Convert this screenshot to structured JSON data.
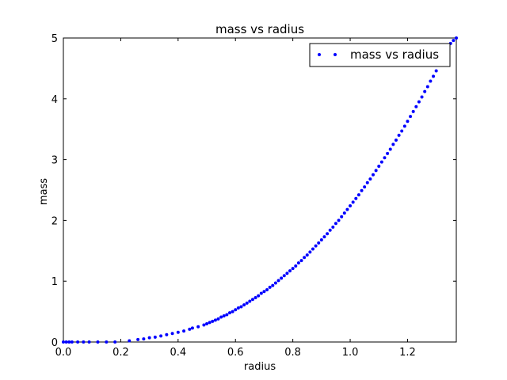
{
  "chart_data": {
    "type": "scatter",
    "title": "mass vs radius",
    "xlabel": "radius",
    "ylabel": "mass",
    "xlim": [
      0.0,
      1.37
    ],
    "ylim": [
      0,
      5
    ],
    "xticks": [
      "0.0",
      "0.2",
      "0.4",
      "0.6",
      "0.8",
      "1.0",
      "1.2"
    ],
    "yticks": [
      "0",
      "1",
      "2",
      "3",
      "4",
      "5"
    ],
    "grid": false,
    "legend": {
      "position": "top-right",
      "entries": [
        "mass vs radius"
      ]
    },
    "series": [
      {
        "name": "mass vs radius",
        "color": "#0000ff",
        "marker": "dot",
        "x": [
          0.0,
          0.01,
          0.02,
          0.03,
          0.05,
          0.07,
          0.09,
          0.12,
          0.15,
          0.18,
          0.23,
          0.26,
          0.28,
          0.3,
          0.32,
          0.34,
          0.36,
          0.38,
          0.4,
          0.42,
          0.44,
          0.45,
          0.47,
          0.49,
          0.5,
          0.51,
          0.52,
          0.53,
          0.54,
          0.55,
          0.56,
          0.57,
          0.58,
          0.59,
          0.6,
          0.61,
          0.62,
          0.63,
          0.64,
          0.65,
          0.66,
          0.67,
          0.68,
          0.69,
          0.7,
          0.71,
          0.72,
          0.73,
          0.74,
          0.75,
          0.76,
          0.77,
          0.78,
          0.79,
          0.8,
          0.81,
          0.82,
          0.83,
          0.84,
          0.85,
          0.86,
          0.87,
          0.88,
          0.89,
          0.9,
          0.91,
          0.92,
          0.93,
          0.94,
          0.95,
          0.96,
          0.97,
          0.98,
          0.99,
          1.0,
          1.01,
          1.02,
          1.03,
          1.04,
          1.05,
          1.06,
          1.07,
          1.08,
          1.09,
          1.1,
          1.11,
          1.12,
          1.13,
          1.14,
          1.15,
          1.16,
          1.17,
          1.18,
          1.19,
          1.2,
          1.21,
          1.22,
          1.23,
          1.24,
          1.25,
          1.26,
          1.27,
          1.28,
          1.29,
          1.3,
          1.31,
          1.32,
          1.33,
          1.34,
          1.35,
          1.36,
          1.37
        ],
        "y": [
          0.0,
          0.0,
          0.0,
          0.0,
          0.0,
          0.0,
          0.0,
          0.0,
          0.0,
          0.0,
          0.02,
          0.04,
          0.05,
          0.07,
          0.08,
          0.1,
          0.12,
          0.14,
          0.16,
          0.18,
          0.21,
          0.23,
          0.25,
          0.28,
          0.3,
          0.32,
          0.34,
          0.36,
          0.38,
          0.41,
          0.43,
          0.45,
          0.48,
          0.5,
          0.53,
          0.56,
          0.58,
          0.61,
          0.64,
          0.67,
          0.7,
          0.73,
          0.76,
          0.8,
          0.83,
          0.86,
          0.9,
          0.93,
          0.97,
          1.01,
          1.05,
          1.09,
          1.13,
          1.17,
          1.21,
          1.25,
          1.3,
          1.34,
          1.39,
          1.43,
          1.48,
          1.53,
          1.58,
          1.63,
          1.68,
          1.73,
          1.78,
          1.84,
          1.89,
          1.95,
          2.0,
          2.06,
          2.12,
          2.18,
          2.24,
          2.3,
          2.36,
          2.42,
          2.49,
          2.55,
          2.62,
          2.68,
          2.75,
          2.82,
          2.89,
          2.96,
          3.03,
          3.1,
          3.17,
          3.25,
          3.32,
          3.4,
          3.47,
          3.55,
          3.63,
          3.71,
          3.79,
          3.87,
          3.95,
          4.03,
          4.12,
          4.2,
          4.29,
          4.37,
          4.46,
          4.55,
          4.64,
          4.73,
          4.82,
          4.91,
          4.96,
          5.0
        ]
      }
    ]
  }
}
